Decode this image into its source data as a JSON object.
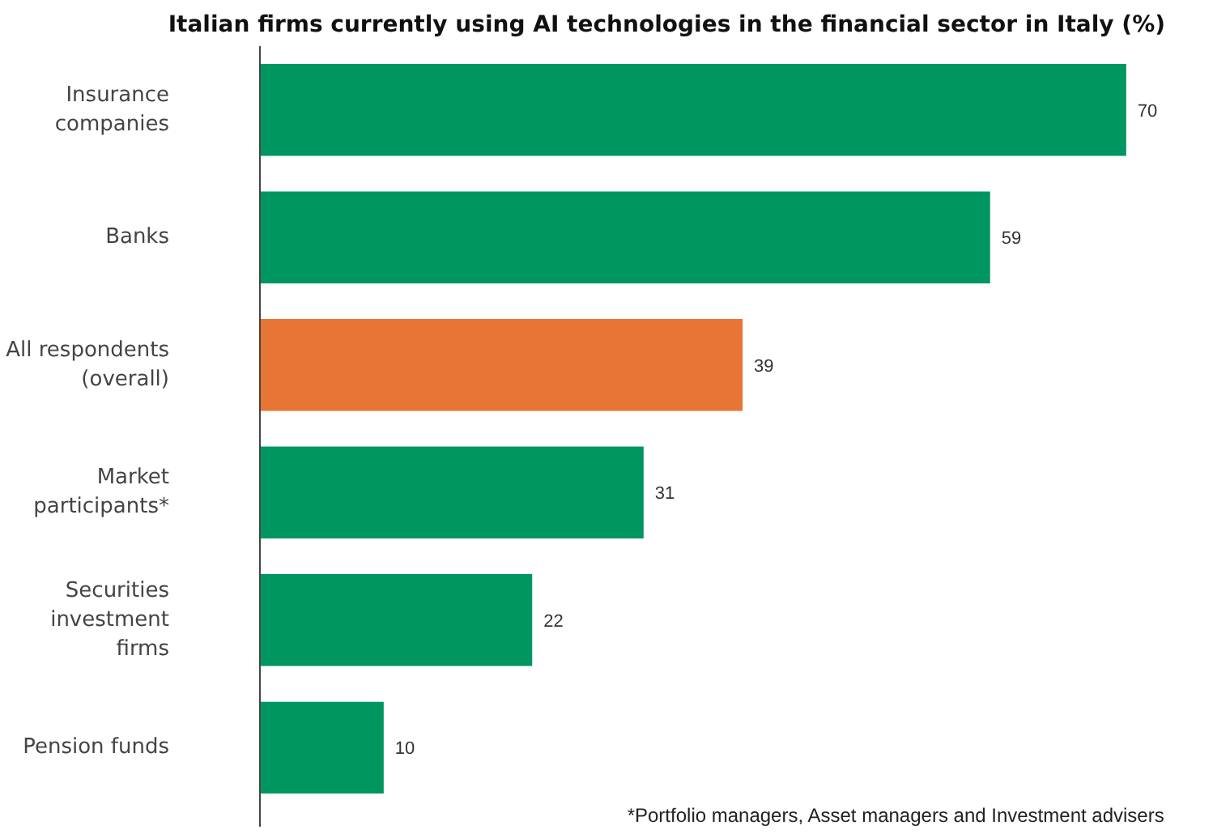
{
  "chart_data": {
    "type": "bar",
    "orientation": "horizontal",
    "title": "Italian firms currently using AI technologies in the financial sector in Italy (%)",
    "categories": [
      "Insurance\ncompanies",
      "Banks",
      "All respondents\n(overall)",
      "Market\nparticipants*",
      "Securities\ninvestment\nfirms",
      "Pension funds"
    ],
    "values": [
      70,
      59,
      39,
      31,
      22,
      10
    ],
    "colors": [
      "#009660",
      "#009660",
      "#e87435",
      "#009660",
      "#009660",
      "#009660"
    ],
    "data_labels": true,
    "grid": false,
    "annotations": [
      "*Portfolio managers, Asset managers and Investment advisers"
    ]
  }
}
